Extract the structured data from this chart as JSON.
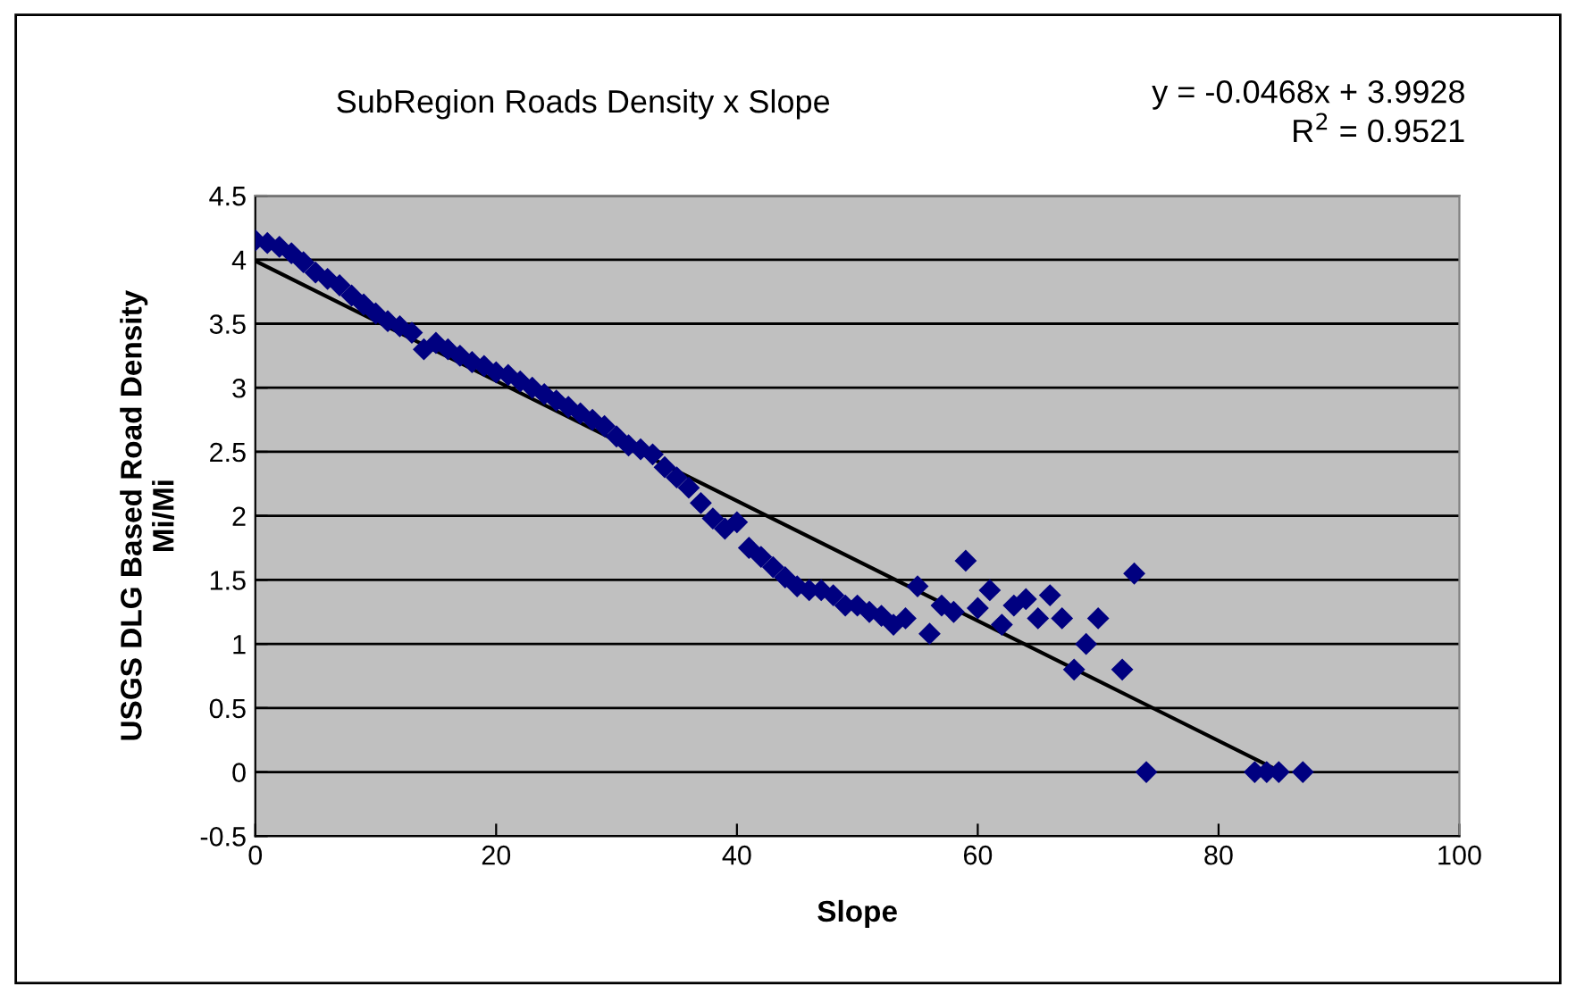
{
  "chart_data": {
    "type": "scatter",
    "title": "SubRegion Roads Density x Slope",
    "xlabel": "Slope",
    "ylabel": "USGS DLG Based Road Density\nMi/Mi",
    "annotations": [
      "y = -0.0468x + 3.9928\nR$^{2}$ = 0.9521"
    ],
    "xlim": [
      0,
      100
    ],
    "xticks": [
      0,
      20,
      40,
      60,
      80,
      100
    ],
    "ylim": [
      -0.5,
      4.5
    ],
    "yticks": [
      -0.5,
      0,
      0.5,
      1,
      1.5,
      2,
      2.5,
      3,
      3.5,
      4,
      4.5
    ],
    "grid": "y",
    "marker": "diamond",
    "series": [
      {
        "color": "#000080",
        "x": [
          0,
          1,
          2,
          3,
          4,
          5,
          6,
          7,
          8,
          9,
          10,
          11,
          12,
          13,
          14,
          15,
          16,
          17,
          18,
          19,
          20,
          21,
          22,
          23,
          24,
          25,
          26,
          27,
          28,
          29,
          30,
          31,
          32,
          33,
          34,
          35,
          36,
          37,
          38,
          39,
          40,
          41,
          42,
          43,
          44,
          45,
          46,
          47,
          48,
          49,
          50,
          51,
          52,
          53,
          54,
          55,
          56,
          57,
          58,
          59,
          60,
          61,
          62,
          63,
          64,
          65,
          66,
          67,
          68,
          69,
          70,
          72,
          73,
          74,
          83,
          84,
          85,
          87
        ],
        "values": [
          4.15,
          4.13,
          4.1,
          4.05,
          3.98,
          3.9,
          3.85,
          3.8,
          3.72,
          3.65,
          3.58,
          3.52,
          3.48,
          3.43,
          3.3,
          3.35,
          3.3,
          3.25,
          3.2,
          3.17,
          3.12,
          3.1,
          3.05,
          3.0,
          2.95,
          2.9,
          2.85,
          2.8,
          2.75,
          2.7,
          2.62,
          2.55,
          2.52,
          2.48,
          2.38,
          2.3,
          2.22,
          2.1,
          1.98,
          1.9,
          1.95,
          1.75,
          1.68,
          1.6,
          1.52,
          1.45,
          1.42,
          1.42,
          1.38,
          1.3,
          1.3,
          1.25,
          1.22,
          1.15,
          1.2,
          1.45,
          1.08,
          1.3,
          1.25,
          1.65,
          1.28,
          1.42,
          1.15,
          1.3,
          1.35,
          1.2,
          1.38,
          1.2,
          0.8,
          1.0,
          1.2,
          0.8,
          1.55,
          0,
          0,
          0,
          0,
          0
        ]
      },
      {
        "type": "line",
        "color": "#000000",
        "marker": "none",
        "line_style": "solid",
        "x": [
          0,
          85
        ],
        "values": [
          3.99,
          0.01
        ]
      }
    ]
  }
}
